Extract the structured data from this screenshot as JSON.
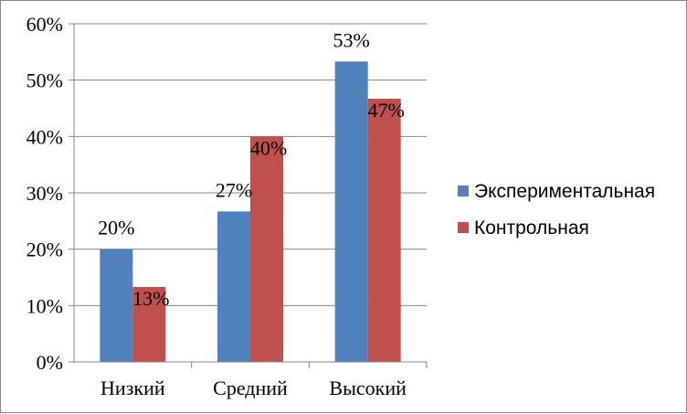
{
  "chart_data": {
    "type": "bar",
    "categories": [
      "Низкий",
      "Средний",
      "Высокий"
    ],
    "series": [
      {
        "name": "Экспериментальная",
        "values": [
          20,
          26.7,
          53.3
        ],
        "labels": [
          "20%",
          "27%",
          "53%"
        ],
        "color": "#4f81bd"
      },
      {
        "name": "Контрольная",
        "values": [
          13.3,
          40,
          46.7
        ],
        "labels": [
          "13%",
          "40%",
          "47%"
        ],
        "color": "#c0504d"
      }
    ],
    "yticks": [
      "0%",
      "10%",
      "20%",
      "30%",
      "40%",
      "50%",
      "60%"
    ],
    "ylim": [
      0,
      60
    ],
    "grid": true,
    "legend": "right"
  }
}
